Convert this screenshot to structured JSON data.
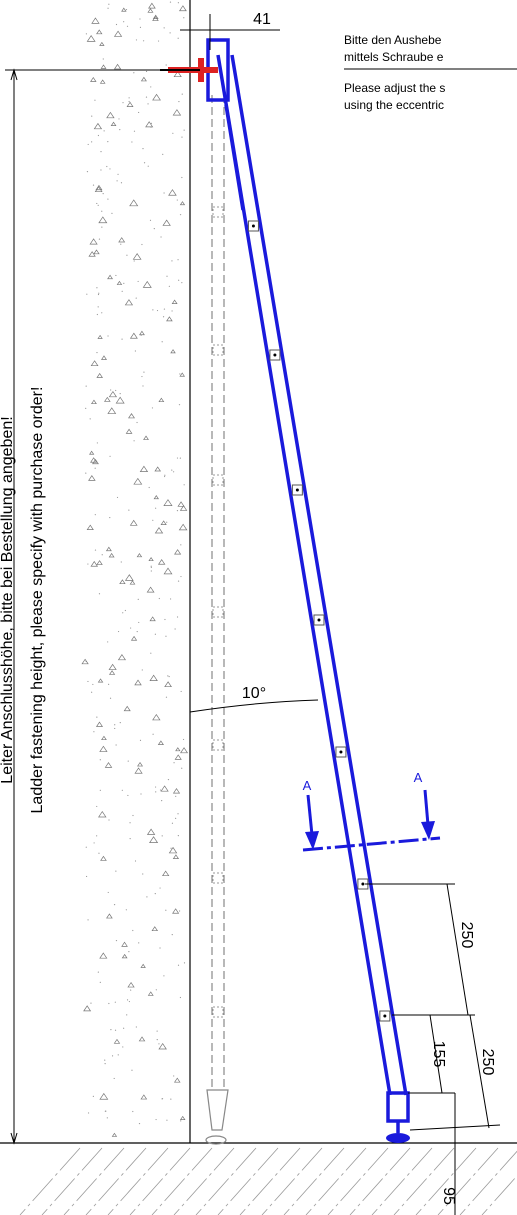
{
  "top_dimension": "41",
  "angle_label": "10°",
  "section_labels": [
    "A",
    "A"
  ],
  "dimensions": {
    "rung_spacing": "250",
    "foot_height": "155",
    "lower_spacing": "250",
    "base": "95"
  },
  "side_labels": [
    "Leiter Anschlusshöhe, bitte bei Bestellung angeben!",
    "Ladder fastening height, please specify with purchase order!"
  ],
  "notes": [
    "Bitte den Aushebe",
    "mittels Schraube e",
    "Please adjust the s",
    "using the eccentric"
  ]
}
